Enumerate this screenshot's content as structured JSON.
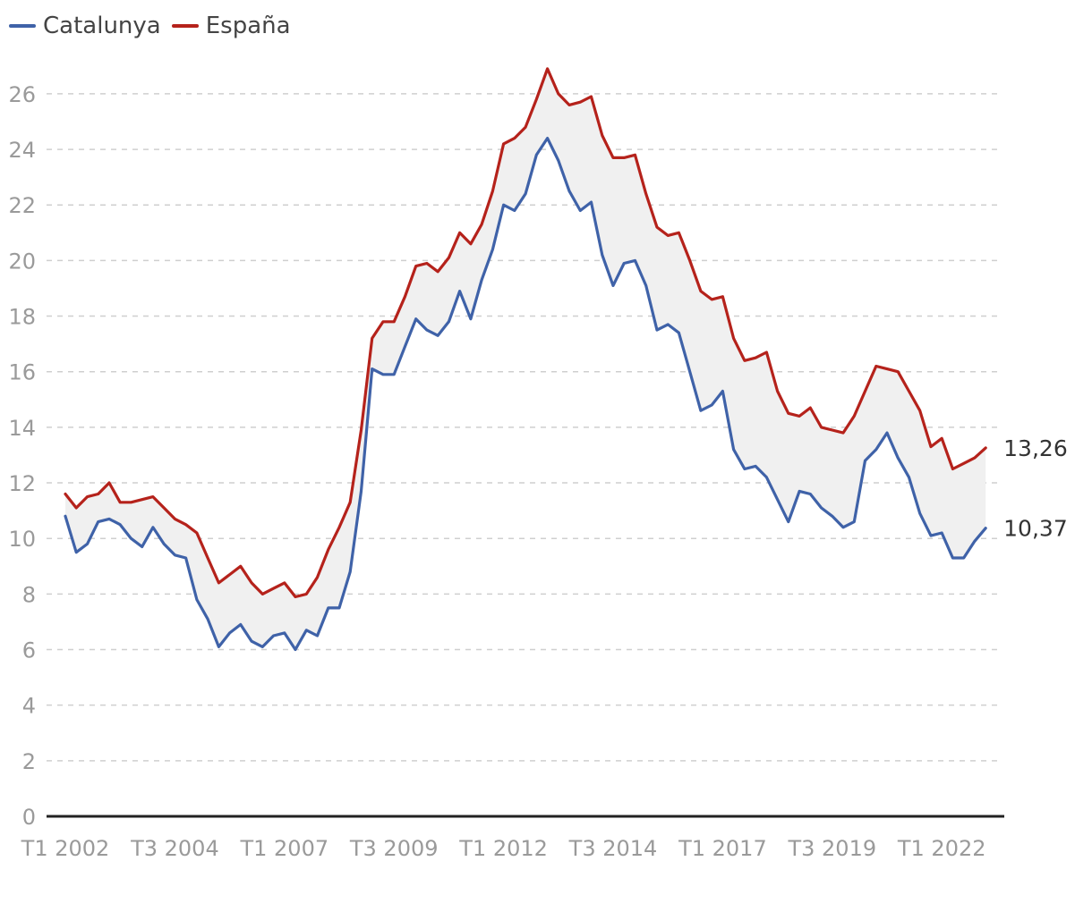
{
  "chart_data": {
    "type": "line",
    "x_labels_shown": [
      "T1 2002",
      "T3 2004",
      "T1 2007",
      "T3 2009",
      "T1 2012",
      "T3 2014",
      "T1 2017",
      "T3 2019",
      "T1 2022"
    ],
    "y_ticks": [
      0,
      2,
      4,
      6,
      8,
      10,
      12,
      14,
      16,
      18,
      20,
      22,
      24,
      26
    ],
    "ylim": [
      0,
      27
    ],
    "grid": true,
    "legend_position": "top-left",
    "band_fill": "#f0f0f0",
    "series": [
      {
        "name": "Catalunya",
        "color": "#3f62a8",
        "end_label": "10,37",
        "values": [
          10.8,
          9.5,
          9.8,
          10.6,
          10.7,
          10.5,
          10.0,
          9.7,
          10.4,
          9.8,
          9.4,
          9.3,
          7.8,
          7.1,
          6.1,
          6.6,
          6.9,
          6.3,
          6.1,
          6.5,
          6.6,
          6.0,
          6.7,
          6.5,
          7.5,
          7.5,
          8.8,
          11.7,
          16.1,
          15.9,
          15.9,
          16.9,
          17.9,
          17.5,
          17.3,
          17.8,
          18.9,
          17.9,
          19.3,
          20.4,
          22.0,
          21.8,
          22.4,
          23.8,
          24.4,
          23.6,
          22.5,
          21.8,
          22.1,
          20.2,
          19.1,
          19.9,
          20.0,
          19.1,
          17.5,
          17.7,
          17.4,
          16.0,
          14.6,
          14.8,
          15.3,
          13.2,
          12.5,
          12.6,
          12.2,
          11.4,
          10.6,
          11.7,
          11.6,
          11.1,
          10.8,
          10.4,
          10.6,
          12.8,
          13.2,
          13.8,
          12.9,
          12.2,
          10.9,
          10.1,
          10.2,
          9.3,
          9.3,
          9.9,
          10.37
        ]
      },
      {
        "name": "España",
        "color": "#b5221b",
        "end_label": "13,26",
        "values": [
          11.6,
          11.1,
          11.5,
          11.6,
          12.0,
          11.3,
          11.3,
          11.4,
          11.5,
          11.1,
          10.7,
          10.5,
          10.2,
          9.3,
          8.4,
          8.7,
          9.0,
          8.4,
          8.0,
          8.2,
          8.4,
          7.9,
          8.0,
          8.6,
          9.6,
          10.4,
          11.3,
          13.9,
          17.2,
          17.8,
          17.8,
          18.7,
          19.8,
          19.9,
          19.6,
          20.1,
          21.0,
          20.6,
          21.3,
          22.5,
          24.2,
          24.4,
          24.8,
          25.8,
          26.9,
          26.0,
          25.6,
          25.7,
          25.9,
          24.5,
          23.7,
          23.7,
          23.8,
          22.4,
          21.2,
          20.9,
          21.0,
          20.0,
          18.9,
          18.6,
          18.7,
          17.2,
          16.4,
          16.5,
          16.7,
          15.3,
          14.5,
          14.4,
          14.7,
          14.0,
          13.9,
          13.8,
          14.4,
          15.3,
          16.2,
          16.1,
          16.0,
          15.3,
          14.6,
          13.3,
          13.6,
          12.5,
          12.7,
          12.9,
          13.26
        ]
      }
    ]
  }
}
